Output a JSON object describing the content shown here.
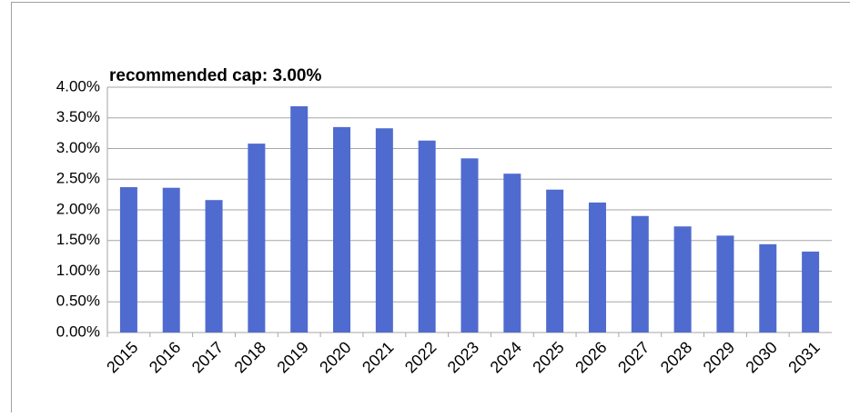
{
  "chart_data": {
    "type": "bar",
    "annotation": "recommended cap: 3.00%",
    "categories": [
      "2015",
      "2016",
      "2017",
      "2018",
      "2019",
      "2020",
      "2021",
      "2022",
      "2023",
      "2024",
      "2025",
      "2026",
      "2027",
      "2028",
      "2029",
      "2030",
      "2031"
    ],
    "values": [
      2.37,
      2.36,
      2.16,
      3.08,
      3.69,
      3.35,
      3.33,
      3.13,
      2.84,
      2.59,
      2.33,
      2.12,
      1.9,
      1.73,
      1.58,
      1.44,
      1.32
    ],
    "color": "#4f6bcf",
    "ylim": [
      0,
      4
    ],
    "yticks": [
      {
        "value": 0,
        "label": "0.00%"
      },
      {
        "value": 0.5,
        "label": "0.50%"
      },
      {
        "value": 1,
        "label": "1.00%"
      },
      {
        "value": 1.5,
        "label": "1.50%"
      },
      {
        "value": 2,
        "label": "2.00%"
      },
      {
        "value": 2.5,
        "label": "2.50%"
      },
      {
        "value": 3,
        "label": "3.00%"
      },
      {
        "value": 3.5,
        "label": "3.50%"
      },
      {
        "value": 4,
        "label": "4.00%"
      }
    ],
    "grid": true
  }
}
